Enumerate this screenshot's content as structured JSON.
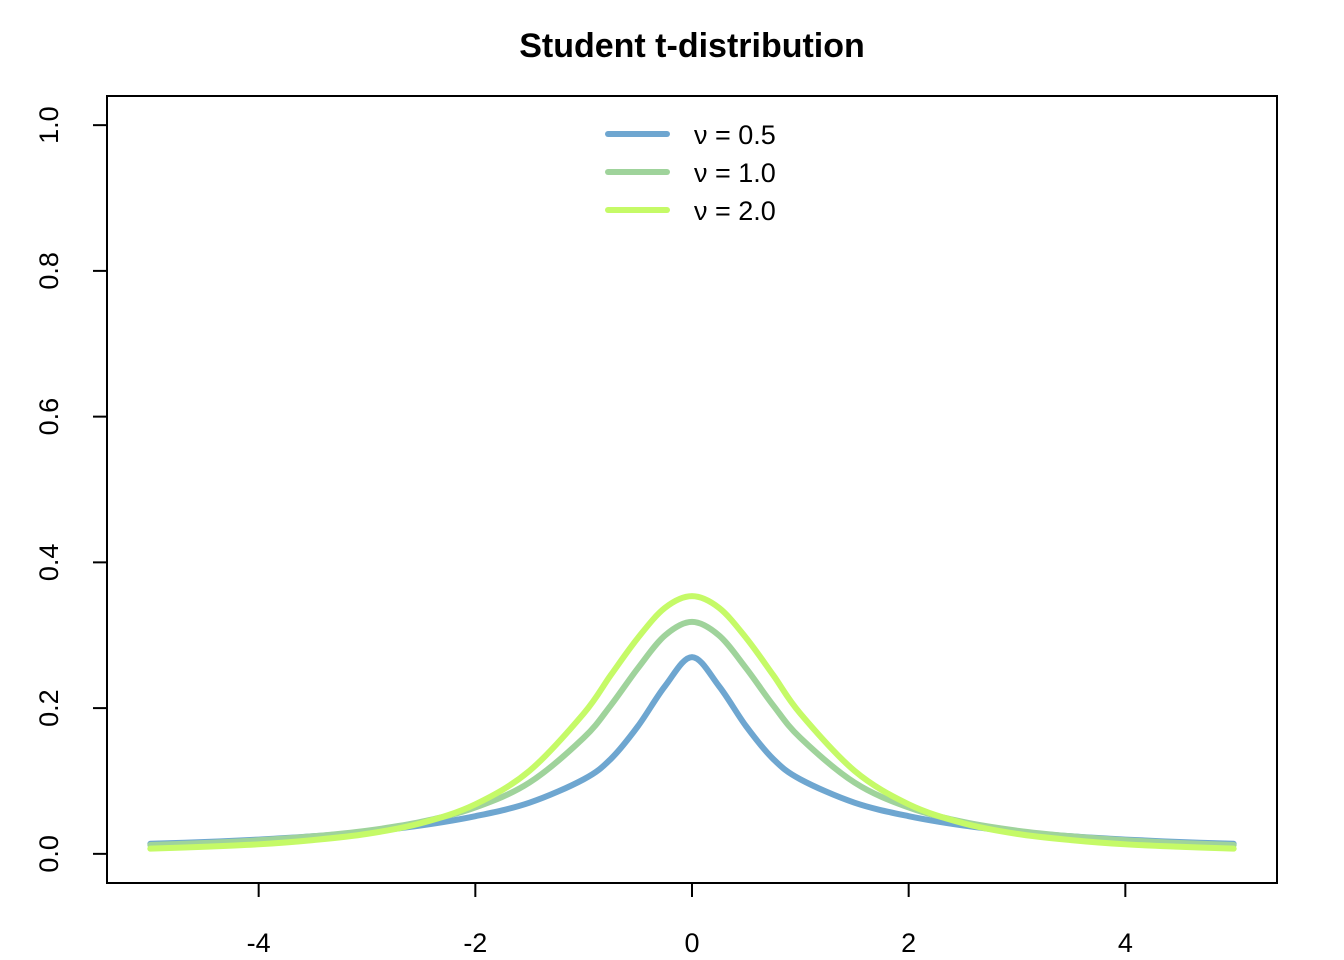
{
  "chart_data": {
    "type": "line",
    "title": "Student t-distribution",
    "xlabel": "",
    "ylabel": "",
    "xlim": [
      -5.4,
      5.4
    ],
    "ylim": [
      -0.04,
      1.04
    ],
    "x_ticks": [
      -4,
      -2,
      0,
      2,
      4
    ],
    "x_tick_labels": [
      "-4",
      "-2",
      "0",
      "2",
      "4"
    ],
    "y_ticks": [
      0.0,
      0.2,
      0.4,
      0.6,
      0.8,
      1.0
    ],
    "y_tick_labels": [
      "0.0",
      "0.2",
      "0.4",
      "0.6",
      "0.8",
      "1.0"
    ],
    "grid": false,
    "legend_position": "top-center",
    "x": [
      -5,
      -4.5,
      -4,
      -3.5,
      -3,
      -2.5,
      -2,
      -1.5,
      -1,
      -0.75,
      -0.5,
      -0.25,
      0,
      0.25,
      0.5,
      0.75,
      1,
      1.5,
      2,
      2.5,
      3,
      3.5,
      4,
      4.5,
      5
    ],
    "series": [
      {
        "name": "ν = 0.5",
        "color": "#6ea6d0",
        "values": [
          0.0138,
          0.0163,
          0.0196,
          0.0241,
          0.0302,
          0.039,
          0.0517,
          0.0702,
          0.1023,
          0.1301,
          0.175,
          0.23,
          0.27,
          0.23,
          0.175,
          0.1301,
          0.1023,
          0.0702,
          0.0517,
          0.039,
          0.0302,
          0.0241,
          0.0196,
          0.0163,
          0.0138
        ]
      },
      {
        "name": "ν = 1.0",
        "color": "#9fd39b",
        "values": [
          0.0122,
          0.0149,
          0.0187,
          0.0241,
          0.0318,
          0.0439,
          0.0637,
          0.0979,
          0.1592,
          0.2037,
          0.2546,
          0.2996,
          0.3183,
          0.2996,
          0.2546,
          0.2037,
          0.1592,
          0.0979,
          0.0637,
          0.0439,
          0.0318,
          0.0241,
          0.0187,
          0.0149,
          0.0122
        ]
      },
      {
        "name": "ν = 2.0",
        "color": "#c5fa67",
        "values": [
          0.0071,
          0.0097,
          0.0131,
          0.0189,
          0.0274,
          0.0422,
          0.068,
          0.114,
          0.1925,
          0.2452,
          0.2962,
          0.3375,
          0.3536,
          0.3375,
          0.2962,
          0.2452,
          0.1925,
          0.114,
          0.068,
          0.0422,
          0.0274,
          0.0189,
          0.0131,
          0.0097,
          0.0071
        ]
      }
    ]
  }
}
